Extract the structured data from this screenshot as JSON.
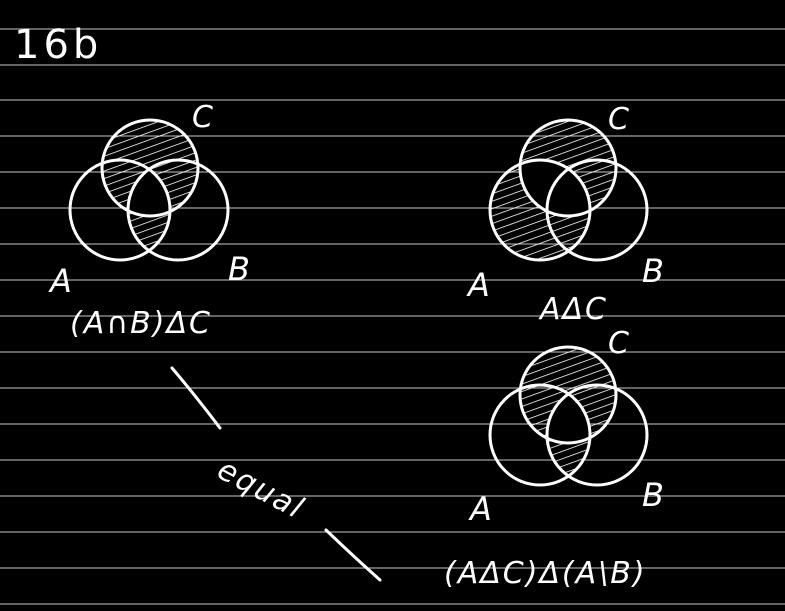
{
  "page": {
    "heading": "16b"
  },
  "diagrams": [
    {
      "id": "left",
      "set_labels": {
        "a": "A",
        "b": "B",
        "c": "C"
      },
      "caption": "(A∩B)ΔC"
    },
    {
      "id": "right-top",
      "set_labels": {
        "a": "A",
        "b": "B",
        "c": "C"
      },
      "caption": "AΔC"
    },
    {
      "id": "right-bottom",
      "set_labels": {
        "a": "A",
        "b": "B",
        "c": "C"
      },
      "caption": "(AΔC)Δ(A\\B)"
    }
  ],
  "annotation": {
    "text": "equal"
  },
  "colors": {
    "background": "#000000",
    "ink": "#ffffff",
    "rule_lines": "#c8c8c8"
  }
}
